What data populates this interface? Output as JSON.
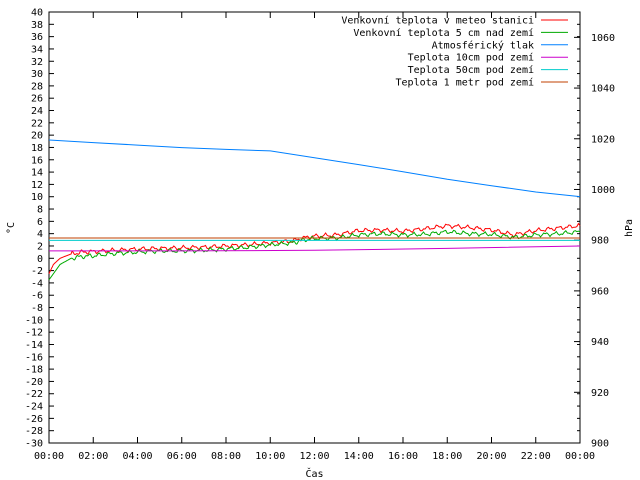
{
  "chart_data": {
    "type": "line",
    "xlabel": "Čas",
    "ylabel": "°C",
    "y2label": "hPa",
    "x_ticks": [
      "00:00",
      "02:00",
      "04:00",
      "06:00",
      "08:00",
      "10:00",
      "12:00",
      "14:00",
      "16:00",
      "18:00",
      "20:00",
      "22:00",
      "00:00"
    ],
    "x_range_hours": [
      0,
      24
    ],
    "ylim": [
      -30,
      40
    ],
    "y_tick_step": 2,
    "y2lim": [
      900,
      1070
    ],
    "y2_ticks": [
      900,
      920,
      940,
      960,
      980,
      1000,
      1020,
      1040,
      1060
    ],
    "legend_position": "top-right",
    "grid": false,
    "series": [
      {
        "name": "Venkovní teplota v meteo stanici",
        "axis": "left",
        "color": "#ff0000",
        "x": [
          0,
          0.2,
          0.5,
          1,
          1.5,
          2,
          3,
          4,
          5,
          6,
          7,
          8,
          9,
          10,
          11,
          11.5,
          12,
          13,
          14,
          15,
          16,
          17,
          18,
          19,
          20,
          21,
          22,
          23,
          24
        ],
        "y": [
          -2.5,
          -1.0,
          0.0,
          0.7,
          1.0,
          1.1,
          1.3,
          1.5,
          1.6,
          1.7,
          1.8,
          2.0,
          2.2,
          2.5,
          2.8,
          3.3,
          3.6,
          3.8,
          4.5,
          4.6,
          4.4,
          4.8,
          5.3,
          5.0,
          4.6,
          3.8,
          4.5,
          4.9,
          5.3
        ]
      },
      {
        "name": "Venkovní teplota 5 cm nad zemí",
        "axis": "left",
        "color": "#00aa00",
        "x": [
          0,
          0.2,
          0.5,
          1,
          1.5,
          2,
          3,
          4,
          5,
          6,
          7,
          8,
          9,
          10,
          11,
          11.5,
          12,
          13,
          14,
          15,
          16,
          17,
          18,
          19,
          20,
          21,
          22,
          23,
          24
        ],
        "y": [
          -3.5,
          -2.5,
          -1.0,
          0.0,
          0.3,
          0.4,
          0.8,
          1.0,
          1.2,
          1.2,
          1.3,
          1.5,
          1.8,
          2.2,
          2.5,
          3.0,
          3.2,
          3.3,
          3.8,
          4.0,
          3.8,
          3.9,
          4.3,
          4.0,
          3.9,
          3.4,
          3.8,
          4.0,
          4.3
        ]
      },
      {
        "name": "Atmosférický tlak",
        "axis": "right",
        "color": "#0080ff",
        "x": [
          0,
          2,
          4,
          6,
          8,
          10,
          12,
          14,
          16,
          18,
          20,
          22,
          24
        ],
        "y": [
          1019.5,
          1018.5,
          1017.5,
          1016.5,
          1015.8,
          1015.2,
          1012.5,
          1009.8,
          1007.0,
          1004.0,
          1001.5,
          999.0,
          997.2
        ]
      },
      {
        "name": "Teplota 10cm pod zemí",
        "axis": "left",
        "color": "#cc00cc",
        "x": [
          0,
          6,
          12,
          18,
          24
        ],
        "y": [
          1.2,
          1.2,
          1.3,
          1.6,
          2.0
        ]
      },
      {
        "name": "Teplota 50cm pod zemí",
        "axis": "left",
        "color": "#00cccc",
        "x": [
          0,
          24
        ],
        "y": [
          2.9,
          2.9
        ]
      },
      {
        "name": "Teplota 1 metr pod zemí",
        "axis": "left",
        "color": "#c04000",
        "x": [
          0,
          24
        ],
        "y": [
          3.3,
          3.3
        ]
      }
    ]
  }
}
